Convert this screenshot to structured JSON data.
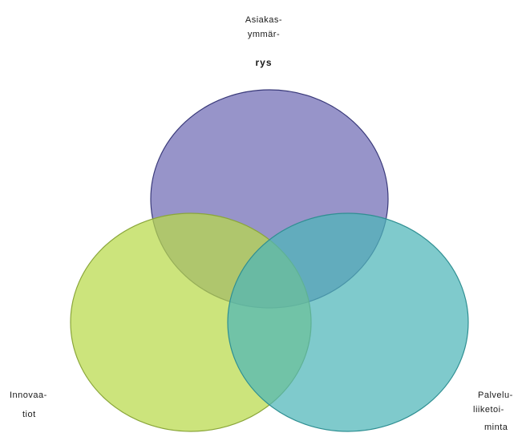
{
  "diagram": {
    "type": "venn",
    "circles": [
      {
        "id": "top",
        "label_lines": [
          "Asiakas-",
          "ymmär-",
          "rys"
        ],
        "fill": "#7d79bb",
        "stroke": "#3a3a7a"
      },
      {
        "id": "left",
        "label_lines": [
          "Innovaa-",
          "tiot"
        ],
        "fill": "#b9d94a",
        "stroke": "#8aa63a"
      },
      {
        "id": "right",
        "label_lines": [
          "Palvelu-",
          "liiketoi-",
          "minta"
        ],
        "fill": "#4db6b9",
        "stroke": "#2f8f92"
      }
    ]
  }
}
